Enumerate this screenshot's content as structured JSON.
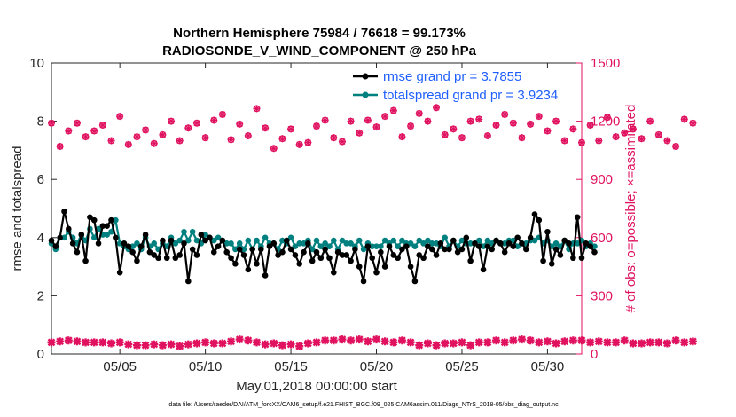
{
  "chart_data": {
    "type": "line",
    "title": "Northern Hemisphere 75984 / 76618 = 99.173%",
    "subtitle": "RADIOSONDE_V_WIND_COMPONENT @ 250 hPa",
    "xlabel": "May.01,2018 00:00:00 start",
    "ylabel": "rmse and totalspread",
    "y2label": "# of obs: o=possible; ×=assimilated",
    "footnote": "data file: /Users/raeder/DAI/ATM_forcXX/CAM6_setup/f.e21.FHIST_BGC.f09_025.CAM6assim.011/Diags_NTrS_2018-05/obs_diag_output.nc",
    "xlim": [
      1,
      32
    ],
    "ylim": [
      0,
      10
    ],
    "y2lim": [
      0,
      1500
    ],
    "xticks": [
      5,
      10,
      15,
      20,
      25,
      30
    ],
    "xticklabels": [
      "05/05",
      "05/10",
      "05/15",
      "05/20",
      "05/25",
      "05/30"
    ],
    "yticks": [
      0,
      2,
      4,
      6,
      8,
      10
    ],
    "y2ticks": [
      0,
      300,
      600,
      900,
      1200,
      1500
    ],
    "legend_position": "top-right",
    "series": [
      {
        "name": "rmse grand pr = 3.7855",
        "color": "#000000",
        "axis": "left",
        "x0": 1.0,
        "dx": 0.25,
        "values": [
          3.9,
          3.7,
          4.0,
          4.9,
          4.3,
          3.8,
          3.5,
          4.1,
          3.2,
          4.7,
          4.6,
          3.8,
          4.4,
          4.4,
          4.6,
          4.0,
          2.8,
          3.8,
          3.7,
          3.5,
          3.2,
          3.7,
          4.1,
          3.5,
          3.4,
          3.3,
          3.9,
          3.3,
          3.9,
          3.3,
          3.4,
          3.8,
          2.5,
          3.6,
          3.4,
          4.1,
          3.9,
          4.0,
          3.5,
          3.7,
          3.9,
          3.5,
          3.3,
          3.1,
          3.6,
          3.4,
          2.9,
          3.6,
          3.1,
          3.6,
          2.7,
          3.7,
          3.8,
          3.4,
          3.5,
          3.9,
          3.6,
          3.4,
          3.1,
          3.5,
          3.8,
          3.2,
          3.5,
          3.3,
          3.6,
          3.3,
          2.8,
          3.5,
          3.4,
          3.4,
          3.2,
          3.6,
          3.0,
          2.5,
          3.7,
          3.3,
          2.8,
          3.5,
          3.0,
          3.7,
          3.4,
          3.3,
          3.6,
          3.7,
          3.0,
          2.5,
          3.4,
          3.3,
          3.7,
          3.6,
          3.4,
          3.8,
          3.6,
          3.6,
          3.9,
          3.5,
          3.6,
          4.0,
          3.2,
          3.8,
          3.7,
          2.9,
          3.7,
          3.6,
          3.9,
          3.8,
          3.5,
          3.8,
          3.7,
          4.0,
          3.8,
          3.6,
          4.0,
          4.8,
          4.6,
          3.2,
          4.2,
          3.1,
          3.6,
          3.4,
          3.9,
          3.8,
          3.3,
          4.7,
          3.3,
          3.8,
          3.7,
          3.5
        ]
      },
      {
        "name": "totalspread grand pr = 3.9234",
        "color": "#00807f",
        "axis": "left",
        "x0": 1.0,
        "dx": 0.25,
        "values": [
          3.8,
          3.6,
          4.0,
          4.0,
          4.2,
          4.0,
          3.8,
          4.1,
          3.9,
          4.3,
          4.0,
          4.3,
          4.1,
          4.1,
          4.2,
          4.6,
          3.8,
          3.7,
          3.6,
          3.7,
          3.8,
          3.6,
          4.0,
          3.7,
          3.8,
          3.6,
          3.8,
          3.7,
          4.0,
          3.8,
          3.9,
          4.2,
          3.9,
          4.2,
          3.9,
          3.8,
          4.1,
          4.0,
          3.9,
          4.0,
          3.9,
          3.8,
          3.8,
          3.6,
          3.8,
          3.6,
          3.9,
          3.6,
          3.9,
          3.7,
          4.0,
          3.8,
          3.8,
          3.6,
          3.9,
          3.8,
          4.0,
          3.7,
          3.8,
          3.8,
          3.9,
          3.6,
          3.9,
          3.7,
          3.8,
          3.7,
          3.9,
          3.6,
          3.9,
          3.8,
          3.8,
          3.7,
          3.9,
          3.6,
          3.8,
          3.7,
          3.7,
          3.7,
          3.9,
          3.8,
          3.9,
          3.7,
          3.9,
          3.8,
          3.8,
          3.7,
          3.9,
          3.8,
          3.9,
          3.8,
          3.8,
          3.7,
          4.0,
          3.7,
          3.9,
          3.7,
          3.9,
          3.8,
          3.8,
          3.8,
          3.9,
          3.7,
          3.9,
          3.8,
          3.9,
          3.8,
          3.8,
          3.9,
          3.9,
          3.7,
          3.8,
          3.8,
          3.9,
          3.9,
          4.0,
          3.8,
          3.9,
          3.7,
          3.8,
          3.7,
          3.9,
          3.6,
          3.8,
          3.8,
          3.9,
          3.7,
          3.8,
          3.7
        ]
      },
      {
        "name": "obs possible",
        "color": "#e0115f",
        "axis": "right",
        "marker": "circle",
        "x0": 1.0,
        "dx": 0.5,
        "values": [
          1190,
          1070,
          1150,
          1190,
          1120,
          1150,
          1180,
          1100,
          1225,
          1080,
          1120,
          1155,
          1085,
          1130,
          1200,
          1100,
          1165,
          1190,
          1115,
          1205,
          1235,
          1105,
          1185,
          1125,
          1265,
          1165,
          1060,
          1110,
          1160,
          1080,
          1090,
          1175,
          1205,
          1115,
          1095,
          1200,
          1140,
          1205,
          1170,
          1225,
          1255,
          1120,
          1175,
          1240,
          1200,
          1270,
          1130,
          1160,
          1115,
          1200,
          1210,
          1125,
          1180,
          1235,
          1190,
          1115,
          1185,
          1225,
          1150,
          1200,
          1100,
          1160,
          1090,
          1180,
          1100,
          1220,
          1120,
          1140,
          1160,
          1110,
          1200,
          1130,
          1100,
          1070,
          1210,
          1190
        ]
      },
      {
        "name": "obs assimilated",
        "color": "#e0115f",
        "axis": "right",
        "marker": "x",
        "x0": 1.0,
        "dx": 0.5,
        "values": [
          60,
          65,
          70,
          65,
          60,
          60,
          60,
          55,
          60,
          50,
          45,
          45,
          50,
          45,
          50,
          40,
          50,
          55,
          60,
          55,
          55,
          65,
          75,
          70,
          60,
          50,
          55,
          45,
          50,
          40,
          55,
          60,
          70,
          70,
          75,
          70,
          75,
          65,
          75,
          65,
          60,
          70,
          60,
          45,
          55,
          45,
          55,
          55,
          60,
          45,
          60,
          60,
          70,
          60,
          70,
          75,
          70,
          60,
          65,
          55,
          65,
          70,
          70,
          60,
          65,
          60,
          60,
          70,
          55,
          55,
          60,
          60,
          55,
          70,
          60,
          65
        ]
      }
    ]
  }
}
